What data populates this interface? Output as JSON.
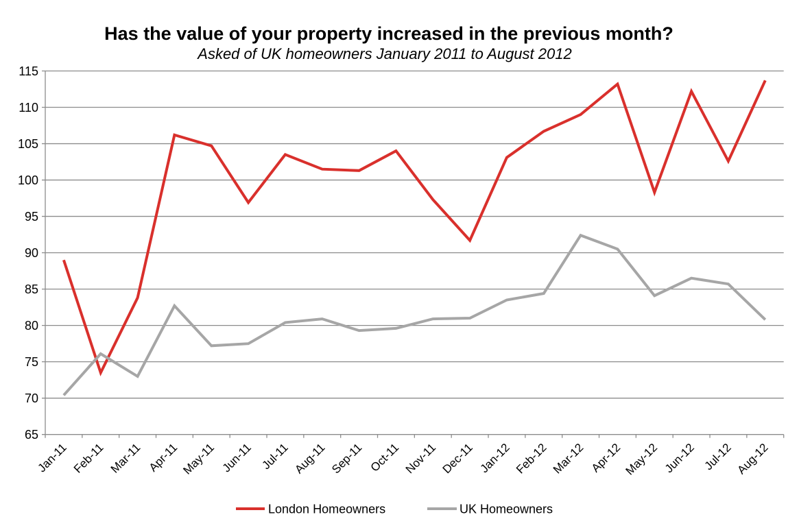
{
  "chart_data": {
    "type": "line",
    "title": "Has the value of your property increased in the previous month?",
    "subtitle": "Asked of UK homeowners January 2011 to August 2012",
    "xlabel": "",
    "ylabel": "",
    "ylim": [
      65,
      115
    ],
    "yticks": [
      65,
      70,
      75,
      80,
      85,
      90,
      95,
      100,
      105,
      110,
      115
    ],
    "grid": true,
    "legend_position": "bottom-center",
    "categories": [
      "Jan-11",
      "Feb-11",
      "Mar-11",
      "Apr-11",
      "May-11",
      "Jun-11",
      "Jul-11",
      "Aug-11",
      "Sep-11",
      "Oct-11",
      "Nov-11",
      "Dec-11",
      "Jan-12",
      "Feb-12",
      "Mar-12",
      "Apr-12",
      "May-12",
      "Jun-12",
      "Jul-12",
      "Aug-12"
    ],
    "series": [
      {
        "name": "London Homeowners",
        "color": "#d9302c",
        "values": [
          89.0,
          73.5,
          83.8,
          106.2,
          104.7,
          96.9,
          103.5,
          101.5,
          101.3,
          104.0,
          97.3,
          91.7,
          103.1,
          106.7,
          109.0,
          113.2,
          98.3,
          112.2,
          102.6,
          113.7
        ]
      },
      {
        "name": "UK Homeowners",
        "color": "#a6a6a6",
        "values": [
          70.4,
          76.1,
          73.0,
          82.7,
          77.2,
          77.5,
          80.4,
          80.9,
          79.3,
          79.6,
          80.9,
          81.0,
          83.5,
          84.4,
          92.4,
          90.5,
          84.1,
          86.5,
          85.7,
          80.8
        ]
      }
    ]
  }
}
